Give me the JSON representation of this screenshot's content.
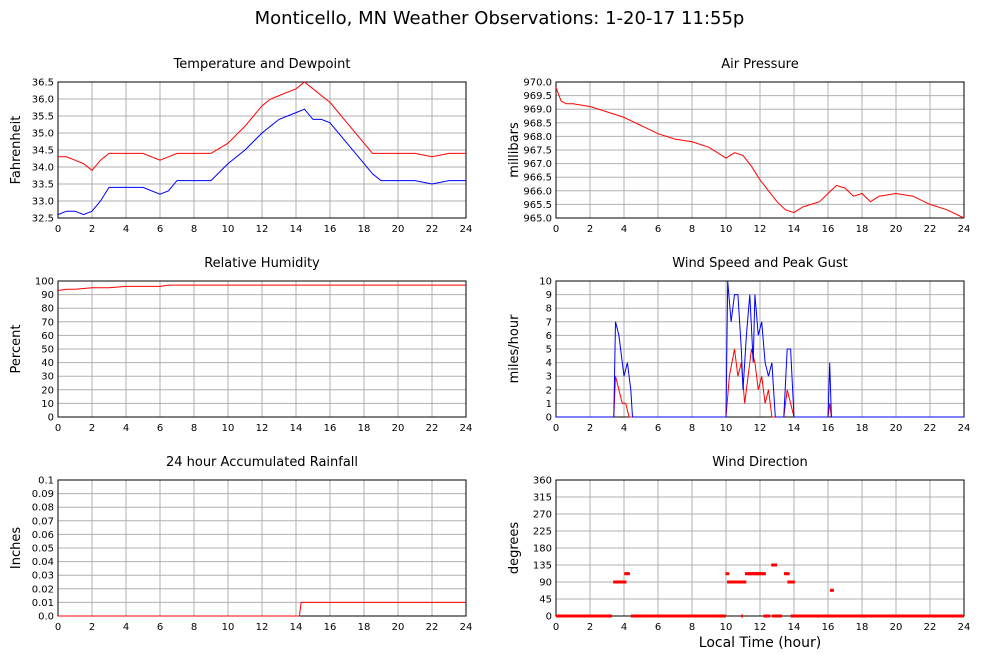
{
  "title": "Monticello, MN Weather Observations: 1-20-17 11:55p",
  "x_axis_label": "Local Time (hour)",
  "colors": {
    "red": "#ff0000",
    "blue": "#0000ff",
    "grid": "#b0b0b0"
  },
  "chart_data": [
    {
      "id": "temp",
      "type": "line",
      "title": "Temperature and Dewpoint",
      "ylabel": "Fahrenheit",
      "xlim": [
        0,
        24
      ],
      "ylim": [
        32.5,
        36.5
      ],
      "xticks": [
        "0",
        "2",
        "4",
        "6",
        "8",
        "10",
        "12",
        "14",
        "16",
        "18",
        "20",
        "22",
        "24"
      ],
      "yticks": [
        "32.5",
        "33.0",
        "33.5",
        "34.0",
        "34.5",
        "35.0",
        "35.5",
        "36.0",
        "36.5"
      ],
      "series": [
        {
          "color": "#ff0000",
          "x": [
            0,
            0.5,
            1,
            1.5,
            2,
            2.5,
            3,
            4,
            5,
            6,
            6.5,
            7,
            8,
            9,
            10,
            11,
            12,
            12.5,
            13,
            13.5,
            14,
            14.5,
            15,
            15.5,
            16,
            17,
            18,
            18.5,
            19,
            19.5,
            20,
            21,
            22,
            23,
            24
          ],
          "y": [
            34.3,
            34.3,
            34.2,
            34.1,
            33.9,
            34.2,
            34.4,
            34.4,
            34.4,
            34.2,
            34.3,
            34.4,
            34.4,
            34.4,
            34.7,
            35.2,
            35.8,
            36.0,
            36.1,
            36.2,
            36.3,
            36.5,
            36.3,
            36.1,
            35.9,
            35.3,
            34.7,
            34.4,
            34.4,
            34.4,
            34.4,
            34.4,
            34.3,
            34.4,
            34.4
          ]
        },
        {
          "color": "#0000ff",
          "x": [
            0,
            0.5,
            1,
            1.5,
            2,
            2.5,
            3,
            4,
            5,
            6,
            6.5,
            7,
            8,
            9,
            10,
            11,
            12,
            12.5,
            13,
            13.5,
            14,
            14.5,
            15,
            15.5,
            16,
            17,
            18,
            18.5,
            19,
            19.5,
            20,
            21,
            22,
            23,
            24
          ],
          "y": [
            32.6,
            32.7,
            32.7,
            32.6,
            32.7,
            33.0,
            33.4,
            33.4,
            33.4,
            33.2,
            33.3,
            33.6,
            33.6,
            33.6,
            34.1,
            34.5,
            35.0,
            35.2,
            35.4,
            35.5,
            35.6,
            35.7,
            35.4,
            35.4,
            35.3,
            34.7,
            34.1,
            33.8,
            33.6,
            33.6,
            33.6,
            33.6,
            33.5,
            33.6,
            33.6
          ]
        }
      ]
    },
    {
      "id": "pressure",
      "type": "line",
      "title": "Air Pressure",
      "ylabel": "millibars",
      "xlim": [
        0,
        24
      ],
      "ylim": [
        965.0,
        970.0
      ],
      "xticks": [
        "0",
        "2",
        "4",
        "6",
        "8",
        "10",
        "12",
        "14",
        "16",
        "18",
        "20",
        "22",
        "24"
      ],
      "yticks": [
        "965.0",
        "965.5",
        "966.0",
        "966.5",
        "967.0",
        "967.5",
        "968.0",
        "968.5",
        "969.0",
        "969.5",
        "970.0"
      ],
      "series": [
        {
          "color": "#ff0000",
          "x": [
            0,
            0.3,
            0.6,
            1,
            2,
            3,
            4,
            5,
            6,
            7,
            8,
            9,
            10,
            10.5,
            11,
            11.5,
            12,
            12.5,
            13,
            13.5,
            14,
            14.5,
            15,
            15.5,
            16,
            16.5,
            17,
            17.5,
            18,
            18.5,
            19,
            20,
            21,
            22,
            23,
            24
          ],
          "y": [
            969.8,
            969.3,
            969.2,
            969.2,
            969.1,
            968.9,
            968.7,
            968.4,
            968.1,
            967.9,
            967.8,
            967.6,
            967.2,
            967.4,
            967.3,
            966.9,
            966.4,
            966.0,
            965.6,
            965.3,
            965.2,
            965.4,
            965.5,
            965.6,
            965.9,
            966.2,
            966.1,
            965.8,
            965.9,
            965.6,
            965.8,
            965.9,
            965.8,
            965.5,
            965.3,
            965.0
          ]
        }
      ]
    },
    {
      "id": "humidity",
      "type": "line",
      "title": "Relative Humidity",
      "ylabel": "Percent",
      "xlim": [
        0,
        24
      ],
      "ylim": [
        0,
        100
      ],
      "xticks": [
        "0",
        "2",
        "4",
        "6",
        "8",
        "10",
        "12",
        "14",
        "16",
        "18",
        "20",
        "22",
        "24"
      ],
      "yticks": [
        "0",
        "10",
        "20",
        "30",
        "40",
        "50",
        "60",
        "70",
        "80",
        "90",
        "100"
      ],
      "series": [
        {
          "color": "#ff0000",
          "x": [
            0,
            0.5,
            1,
            2,
            3,
            4,
            5,
            6,
            6.5,
            8,
            10,
            12,
            14,
            16,
            18,
            20,
            22,
            24
          ],
          "y": [
            93,
            94,
            94,
            95,
            95,
            96,
            96,
            96,
            97,
            97,
            97,
            97,
            97,
            97,
            97,
            97,
            97,
            97
          ]
        }
      ]
    },
    {
      "id": "wind",
      "type": "line",
      "title": "Wind Speed and Peak Gust",
      "ylabel": "miles/hour",
      "xlim": [
        0,
        24
      ],
      "ylim": [
        0,
        10
      ],
      "xticks": [
        "0",
        "2",
        "4",
        "6",
        "8",
        "10",
        "12",
        "14",
        "16",
        "18",
        "20",
        "22",
        "24"
      ],
      "yticks": [
        "0",
        "1",
        "2",
        "3",
        "4",
        "5",
        "6",
        "7",
        "8",
        "9",
        "10"
      ],
      "series": [
        {
          "color": "#ff0000",
          "x": [
            0,
            3.4,
            3.5,
            3.7,
            3.9,
            4.1,
            4.3,
            10.0,
            10.2,
            10.5,
            10.7,
            10.9,
            11.1,
            11.3,
            11.5,
            11.7,
            11.9,
            12.1,
            12.3,
            12.5,
            12.7,
            13.0,
            13.4,
            13.6,
            13.8,
            14.0,
            16.0,
            16.1,
            16.2,
            24
          ],
          "y": [
            0,
            0,
            3,
            2,
            1,
            1,
            0,
            0,
            3,
            5,
            3,
            4,
            1,
            3,
            5,
            4,
            2,
            3,
            1,
            2,
            0,
            0,
            0,
            2,
            1,
            0,
            0,
            1,
            0,
            0
          ]
        },
        {
          "color": "#0000ff",
          "x": [
            0,
            3.4,
            3.5,
            3.7,
            3.9,
            4.0,
            4.2,
            4.4,
            4.5,
            10.0,
            10.1,
            10.3,
            10.5,
            10.7,
            10.9,
            11.0,
            11.2,
            11.4,
            11.6,
            11.7,
            11.9,
            12.1,
            12.3,
            12.5,
            12.7,
            12.9,
            13.2,
            13.4,
            13.6,
            13.8,
            14.0,
            16.0,
            16.1,
            16.2,
            24
          ],
          "y": [
            0,
            0,
            7,
            6,
            4,
            3,
            4,
            2,
            0,
            0,
            10,
            7,
            9,
            9,
            5,
            2,
            6,
            9,
            4,
            9,
            6,
            7,
            4,
            3,
            4,
            0,
            0,
            0,
            5,
            5,
            0,
            0,
            4,
            0,
            0
          ]
        }
      ]
    },
    {
      "id": "rain",
      "type": "line",
      "title": "24 hour Accumulated Rainfall",
      "ylabel": "Inches",
      "xlim": [
        0,
        24
      ],
      "ylim": [
        0,
        0.1
      ],
      "xticks": [
        "0",
        "2",
        "4",
        "6",
        "8",
        "10",
        "12",
        "14",
        "16",
        "18",
        "20",
        "22",
        "24"
      ],
      "yticks": [
        "0.0",
        "0.01",
        "0.02",
        "0.03",
        "0.04",
        "0.05",
        "0.06",
        "0.07",
        "0.08",
        "0.09",
        "0.1"
      ],
      "series": [
        {
          "color": "#ff0000",
          "x": [
            0,
            14.2,
            14.3,
            24
          ],
          "y": [
            0,
            0,
            0.01,
            0.01
          ]
        }
      ]
    },
    {
      "id": "direction",
      "type": "scatter",
      "title": "Wind Direction",
      "ylabel": "degrees",
      "xlim": [
        0,
        24
      ],
      "ylim": [
        0,
        360
      ],
      "xticks": [
        "0",
        "2",
        "4",
        "6",
        "8",
        "10",
        "12",
        "14",
        "16",
        "18",
        "20",
        "22",
        "24"
      ],
      "yticks": [
        "0",
        "45",
        "90",
        "135",
        "180",
        "225",
        "270",
        "315",
        "360"
      ],
      "series": [
        {
          "color": "#ff0000",
          "x": [
            3.45,
            3.55,
            3.65,
            3.75,
            3.85,
            4.0,
            4.1,
            4.2,
            10.05,
            10.15,
            10.25,
            10.35,
            10.45,
            10.55,
            10.65,
            10.75,
            10.85,
            10.95,
            11.05,
            11.2,
            11.3,
            11.4,
            11.5,
            11.6,
            11.7,
            11.8,
            11.9,
            12.0,
            12.1,
            12.2,
            12.75,
            12.85,
            13.5,
            13.6,
            13.7,
            13.8,
            13.9,
            16.2
          ],
          "y": [
            90,
            90,
            90,
            90,
            90,
            90,
            112,
            112,
            112,
            90,
            90,
            90,
            90,
            90,
            90,
            90,
            90,
            90,
            90,
            112,
            112,
            112,
            112,
            112,
            112,
            112,
            112,
            112,
            112,
            112,
            135,
            135,
            112,
            112,
            90,
            90,
            90,
            68
          ]
        }
      ],
      "zero_segments": [
        [
          0,
          3.3
        ],
        [
          4.4,
          10.0
        ],
        [
          10.9,
          11.0
        ],
        [
          12.2,
          12.6
        ],
        [
          12.7,
          13.3
        ],
        [
          13.8,
          24
        ]
      ]
    }
  ]
}
